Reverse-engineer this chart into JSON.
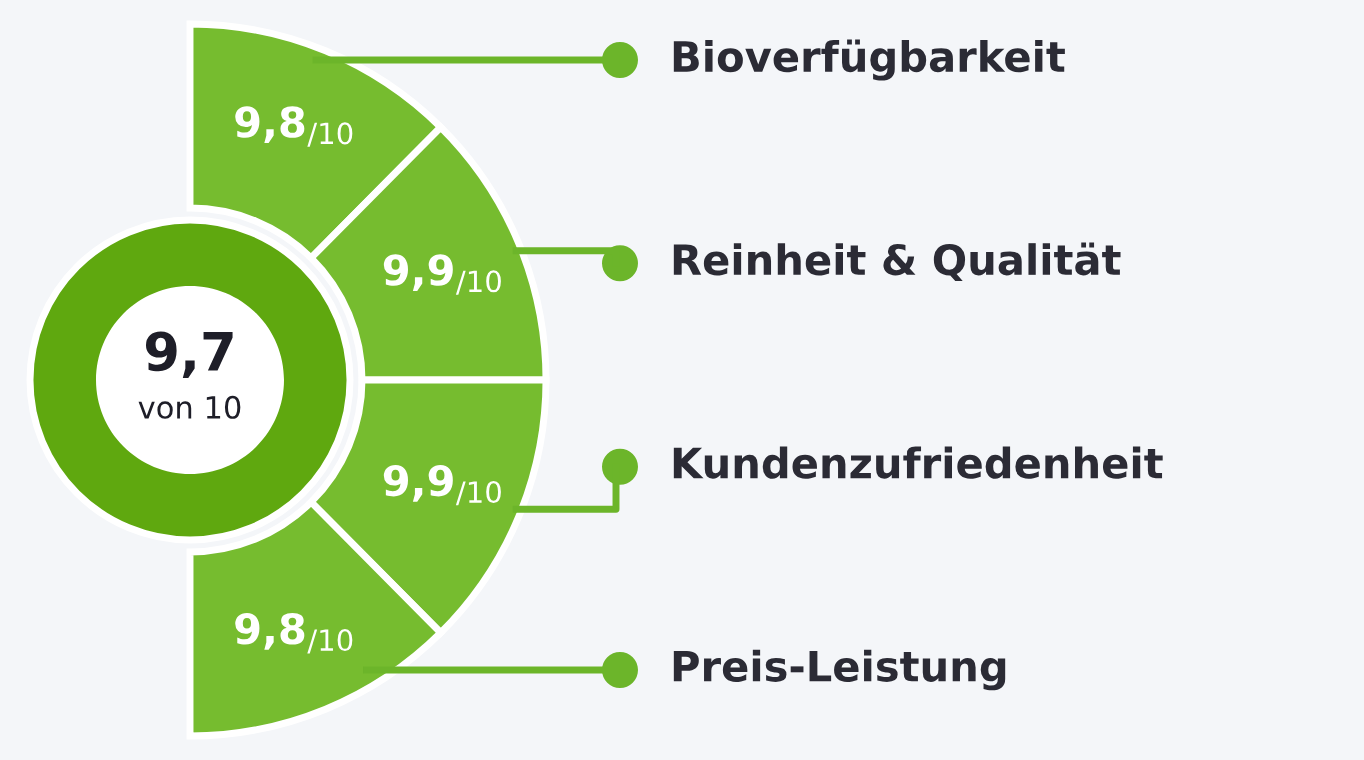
{
  "chart_data": {
    "type": "other",
    "categories": [
      "Bioverfügbarkeit",
      "Reinheit & Qualität",
      "Kundenzufriedenheit",
      "Preis-Leistung"
    ],
    "values": [
      9.8,
      9.9,
      9.9,
      9.8
    ],
    "value_labels": [
      "9,8$_{/10}$",
      "9,9$_{/10}$",
      "9,9$_{/10}$",
      "9,8$_{/10}$"
    ],
    "colors": [
      "#76bc2f",
      "#76bc2f",
      "#76bc2f",
      "#76bc2f"
    ],
    "annotations": [
      "9,7",
      "von 10"
    ]
  }
}
